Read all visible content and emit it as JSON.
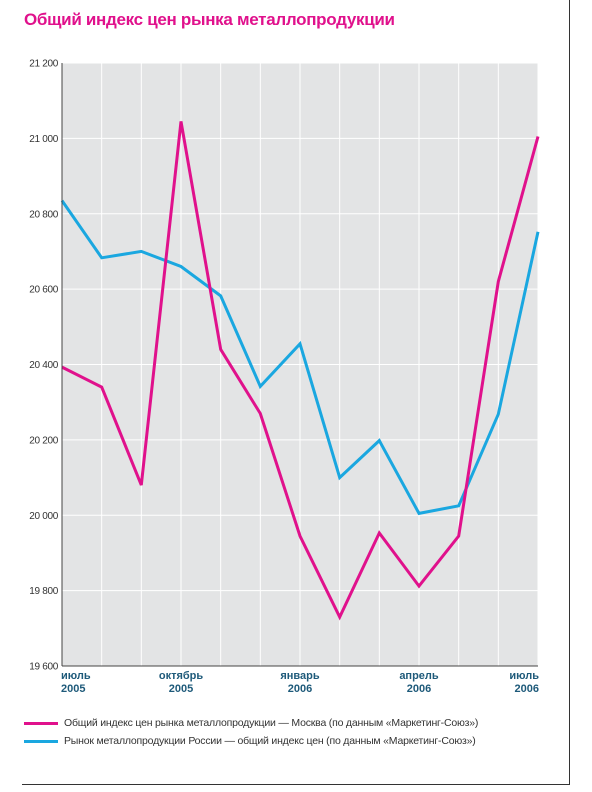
{
  "colors": {
    "moscow": "#e0118c",
    "russia": "#1aa7e0",
    "plot_bg": "#e3e4e5",
    "title": "#e0118c",
    "x_labels": "#1e5a7a"
  },
  "chart_data": {
    "type": "line",
    "title": "Общий индекс цен рынка металлопродукции",
    "xlabel": "",
    "ylabel": "",
    "ylim": [
      19600,
      21200
    ],
    "yticks": [
      19600,
      19800,
      20000,
      20200,
      20400,
      20600,
      20800,
      21000,
      21200
    ],
    "ytick_labels": [
      "19 600",
      "19 800",
      "20 000",
      "20 200",
      "20 400",
      "20 600",
      "20 800",
      "21 000",
      "21 200"
    ],
    "x": [
      "2005-07",
      "2005-08",
      "2005-09",
      "2005-10",
      "2005-11",
      "2005-12",
      "2006-01",
      "2006-02",
      "2006-03",
      "2006-04",
      "2006-05",
      "2006-06",
      "2006-07"
    ],
    "xtick_labels": [
      {
        "index": 0,
        "line1": "июль",
        "line2": "2005"
      },
      {
        "index": 3,
        "line1": "октябрь",
        "line2": "2005"
      },
      {
        "index": 6,
        "line1": "январь",
        "line2": "2006"
      },
      {
        "index": 9,
        "line1": "апрель",
        "line2": "2006"
      },
      {
        "index": 12,
        "line1": "июль",
        "line2": "2006"
      }
    ],
    "grid": true,
    "legend_placement": "bottom",
    "series": [
      {
        "name": "Общий индекс цен рынка металлопродукции — Москва (по данным «Маркетинг-Союз»)",
        "color": "#e0118c",
        "values": [
          20393,
          20340,
          20080,
          21045,
          20440,
          20270,
          19945,
          19730,
          19953,
          19812,
          19945,
          20620,
          21005
        ]
      },
      {
        "name": "Рынок металлопродукции России — общий индекс цен (по данным «Маркетинг-Союз»)",
        "color": "#1aa7e0",
        "values": [
          20835,
          20683,
          20700,
          20660,
          20582,
          20342,
          20455,
          20100,
          20198,
          20005,
          20025,
          20268,
          20752
        ]
      }
    ]
  }
}
